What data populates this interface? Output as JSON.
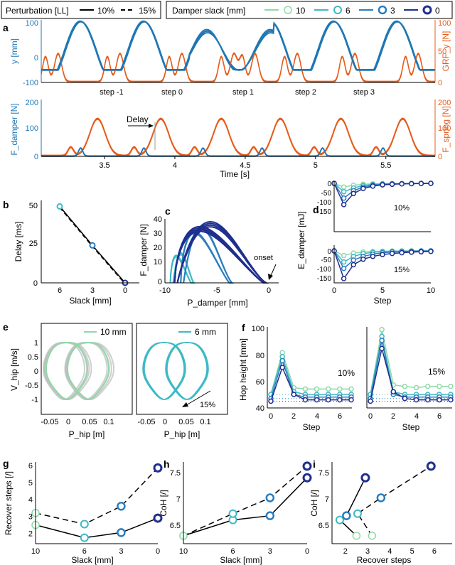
{
  "colors": {
    "y_blue": "#1f77b4",
    "orange": "#e65c1a",
    "slack_10": "#8fd9a8",
    "slack_6": "#3cb9c6",
    "slack_3": "#2a7dbf",
    "slack_0": "#1f2f8f",
    "gray": "#bbbbbb"
  },
  "legend": {
    "perturbation_title": "Perturbation [LL]",
    "pert_10": "10%",
    "pert_15": "15%",
    "slack_title": "Damper slack [mm]",
    "items": [
      "10",
      "6",
      "3",
      "0"
    ]
  },
  "chart_data": [
    {
      "id": "a-top",
      "panel": "a",
      "type": "line",
      "ylabel_left": "y [mm]",
      "ylabel_right": "GRF_y [N]",
      "ylim_left": [
        -100,
        100
      ],
      "yticks_left": [
        "100",
        "0",
        "-100"
      ],
      "ylim_right": [
        0,
        100
      ],
      "yticks_right": [
        "100",
        "50",
        "0"
      ],
      "step_labels": [
        "step -1",
        "step 0",
        "step 1",
        "step 2",
        "step 3"
      ],
      "step_times": [
        3.5,
        3.92,
        4.4,
        4.84,
        5.28
      ]
    },
    {
      "id": "a-bottom",
      "panel": "a",
      "type": "line",
      "xlabel": "Time [s]",
      "x_ticks": [
        3.5,
        4,
        4.5,
        5,
        5.5
      ],
      "xlim": [
        3.05,
        5.85
      ],
      "ylabel_left": "F_damper [N]",
      "ylabel_right": "F_spring [N]",
      "ylim_left": [
        0,
        200
      ],
      "yticks_left": [
        "200",
        "100",
        "0"
      ],
      "ylim_right": [
        0,
        200
      ],
      "yticks_right": [
        "200",
        "100",
        "0"
      ],
      "annotation": "Delay"
    },
    {
      "id": "b",
      "panel": "b",
      "type": "line",
      "xlabel": "Slack [mm]",
      "ylabel": "Delay [ms]",
      "x": [
        6,
        3,
        0
      ],
      "y": [
        51,
        25,
        0
      ],
      "x_ticks": [
        "6",
        "3",
        "0"
      ],
      "y_ticks": [
        "50",
        "25",
        "0"
      ],
      "ylim": [
        0,
        55
      ]
    },
    {
      "id": "c",
      "panel": "c",
      "type": "line",
      "xlabel": "P_damper [mm]",
      "ylabel": "F_damper [N]",
      "xlim": [
        -10,
        1
      ],
      "ylim": [
        0,
        45
      ],
      "x_ticks": [
        "-10",
        "-5",
        "0"
      ],
      "y_ticks": [
        "40",
        "30",
        "20",
        "10",
        "0"
      ],
      "annotation": "onset"
    },
    {
      "id": "d",
      "panel": "d",
      "type": "line",
      "xlabel": "Step",
      "ylabel": "E_damper [mJ]",
      "x_ticks": [
        "0",
        "5",
        "10"
      ],
      "y_ticks": [
        "0",
        "-50",
        "-100",
        "-150"
      ],
      "steps": [
        0,
        1,
        2,
        3,
        4,
        5,
        6,
        7,
        8,
        9,
        10
      ],
      "series_10": [
        {
          "name": "10",
          "values": [
            0,
            -20,
            -10,
            -5,
            -3,
            -2,
            -1,
            -1,
            0,
            0,
            0
          ]
        },
        {
          "name": "6",
          "values": [
            0,
            -45,
            -25,
            -12,
            -6,
            -3,
            -2,
            -1,
            -1,
            0,
            0
          ]
        },
        {
          "name": "3",
          "values": [
            0,
            -80,
            -40,
            -20,
            -10,
            -5,
            -3,
            -2,
            -1,
            0,
            0
          ]
        },
        {
          "name": "0",
          "values": [
            0,
            -115,
            -55,
            -28,
            -15,
            -8,
            -5,
            -3,
            -2,
            -1,
            0
          ]
        }
      ],
      "series_15": [
        {
          "name": "10",
          "values": [
            0,
            -25,
            -12,
            -6,
            -3,
            -2,
            -1,
            -1,
            0,
            0,
            0
          ]
        },
        {
          "name": "6",
          "values": [
            0,
            -60,
            -30,
            -15,
            -8,
            -4,
            -2,
            -1,
            -1,
            0,
            0
          ]
        },
        {
          "name": "3",
          "values": [
            0,
            -95,
            -50,
            -30,
            -18,
            -10,
            -6,
            -4,
            -2,
            -1,
            0
          ]
        },
        {
          "name": "0",
          "values": [
            0,
            -150,
            -75,
            -45,
            -30,
            -20,
            -14,
            -10,
            -7,
            -5,
            -3
          ]
        }
      ],
      "label_10": "10%",
      "label_15": "15%"
    },
    {
      "id": "e",
      "panel": "e",
      "type": "scatter",
      "xlabel": "P_hip [m]",
      "ylabel": "V_hip [m/s]",
      "x_ticks": [
        "-0.05",
        "0",
        "0.05",
        "0.1"
      ],
      "y_ticks": [
        "1",
        "0.5",
        "0",
        "-0.5",
        "-1"
      ],
      "legend_left": "10 mm",
      "legend_right": "6 mm",
      "annotation": "15%"
    },
    {
      "id": "f",
      "panel": "f",
      "type": "line",
      "xlabel": "Step",
      "ylabel": "Hop height [mm]",
      "x_ticks": [
        "0",
        "2",
        "4",
        "6"
      ],
      "y_ticks": [
        "100",
        "80",
        "60",
        "40"
      ],
      "ylim": [
        40,
        100
      ],
      "steps": [
        0,
        1,
        2,
        3,
        4,
        5,
        6,
        7
      ],
      "series_10": [
        {
          "name": "10",
          "values": [
            50,
            81,
            55,
            54,
            54,
            54,
            54,
            54
          ]
        },
        {
          "name": "6",
          "values": [
            50,
            78,
            52,
            50,
            50,
            50,
            50,
            50
          ]
        },
        {
          "name": "3",
          "values": [
            47,
            75,
            50,
            48,
            48,
            48,
            48,
            48
          ]
        },
        {
          "name": "0",
          "values": [
            45,
            70,
            50,
            46,
            46,
            46,
            46,
            46
          ]
        }
      ],
      "series_15": [
        {
          "name": "10",
          "values": [
            50,
            98,
            57,
            56,
            55,
            56,
            56,
            56
          ]
        },
        {
          "name": "6",
          "values": [
            50,
            93,
            52,
            50,
            50,
            50,
            50,
            50
          ]
        },
        {
          "name": "3",
          "values": [
            47,
            90,
            50,
            48,
            48,
            48,
            48,
            48
          ]
        },
        {
          "name": "0",
          "values": [
            45,
            84,
            52,
            47,
            46,
            46,
            46,
            46
          ]
        }
      ],
      "label_10": "10%",
      "label_15": "15%"
    },
    {
      "id": "g",
      "panel": "g",
      "type": "line",
      "xlabel": "Slack [mm]",
      "ylabel": "Recover steps [/]",
      "x": [
        10,
        6,
        3,
        0
      ],
      "x_ticks": [
        "10",
        "6",
        "3",
        "0"
      ],
      "y_ticks": [
        "2",
        "3",
        "4",
        "5",
        "6"
      ],
      "ylim": [
        1.4,
        6.2
      ],
      "series": [
        {
          "name": "10%",
          "values": [
            2.5,
            1.75,
            2.05,
            2.9
          ]
        },
        {
          "name": "15%",
          "values": [
            3.2,
            2.55,
            3.6,
            5.85
          ]
        }
      ]
    },
    {
      "id": "h",
      "panel": "h",
      "type": "line",
      "xlabel": "Slack [mm]",
      "ylabel": "CoH [/]",
      "x": [
        10,
        6,
        3,
        0
      ],
      "x_ticks": [
        "10",
        "6",
        "3",
        "0"
      ],
      "y_ticks": [
        "6.5",
        "7",
        "7.5"
      ],
      "ylim": [
        6.15,
        7.7
      ],
      "series": [
        {
          "name": "10%",
          "values": [
            6.3,
            6.6,
            6.68,
            7.4
          ]
        },
        {
          "name": "15%",
          "values": [
            6.3,
            6.72,
            7.02,
            7.62
          ]
        }
      ]
    },
    {
      "id": "i",
      "panel": "i",
      "type": "scatter",
      "xlabel": "Recover steps",
      "ylabel": "CoH [/]",
      "x_ticks": [
        "2",
        "3",
        "4",
        "5",
        "6"
      ],
      "y_ticks": [
        "6.5",
        "7",
        "7.5"
      ],
      "xlim": [
        1.4,
        6.8
      ],
      "ylim": [
        6.15,
        7.7
      ],
      "series": [
        {
          "name": "10%",
          "x": [
            2.5,
            1.75,
            2.05,
            2.9
          ],
          "y": [
            6.3,
            6.6,
            6.68,
            7.4
          ]
        },
        {
          "name": "15%",
          "x": [
            3.2,
            2.55,
            3.6,
            5.85
          ],
          "y": [
            6.3,
            6.72,
            7.02,
            7.62
          ]
        }
      ]
    }
  ]
}
